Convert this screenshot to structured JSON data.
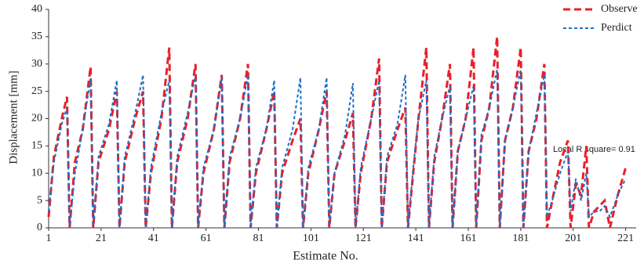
{
  "chart_data": {
    "type": "line",
    "x_label": "Estimate No.",
    "y_label": "Displacement [mm]",
    "annotation": "Local R square= 0.91",
    "legend": "top-right",
    "xlim": [
      1,
      225
    ],
    "ylim": [
      0,
      40
    ],
    "xticks": [
      1,
      21,
      41,
      61,
      81,
      101,
      121,
      141,
      161,
      181,
      201,
      221
    ],
    "yticks": [
      0,
      5,
      10,
      15,
      20,
      25,
      30,
      35,
      40
    ],
    "x": [
      1,
      3,
      6,
      8,
      9,
      11,
      14,
      17,
      18,
      20,
      24,
      27,
      28,
      30,
      34,
      37,
      38,
      40,
      44,
      47,
      48,
      50,
      54,
      57,
      58,
      60,
      64,
      67,
      68,
      70,
      74,
      77,
      78,
      80,
      84,
      87,
      88,
      90,
      94,
      97,
      98,
      100,
      104,
      107,
      108,
      110,
      114,
      117,
      118,
      120,
      124,
      127,
      128,
      130,
      134,
      137,
      138,
      140,
      142,
      145,
      146,
      148,
      151,
      154,
      155,
      157,
      160,
      163,
      164,
      166,
      169,
      172,
      173,
      175,
      178,
      181,
      182,
      184,
      187,
      190,
      191,
      193,
      196,
      199,
      200,
      202,
      204,
      206,
      207,
      209,
      211,
      213,
      215,
      218,
      221
    ],
    "series": [
      {
        "name": "Observe",
        "color": "#e8202a",
        "dash": "9,5",
        "width": 3,
        "values": [
          2,
          13,
          20,
          24,
          0,
          12,
          18,
          29.5,
          0,
          12,
          18,
          25,
          0,
          12,
          20,
          25,
          0,
          10,
          20,
          33,
          0,
          12,
          20,
          30,
          0,
          10,
          18,
          28,
          0,
          12,
          20,
          30,
          0,
          10,
          18,
          25,
          0,
          10,
          16,
          20,
          0,
          10,
          18,
          25,
          0,
          10,
          16,
          21,
          0,
          10,
          20,
          31,
          0,
          12,
          18,
          22,
          0,
          10,
          20,
          33,
          0,
          12,
          20,
          30,
          0,
          14,
          20,
          33,
          0,
          16,
          22,
          35,
          0,
          16,
          22,
          33,
          0,
          14,
          20,
          30,
          0,
          5,
          12,
          16,
          0,
          8,
          6,
          15,
          0,
          3,
          4,
          5,
          0,
          6,
          11
        ]
      },
      {
        "name": "Perdict",
        "color": "#1f6fc4",
        "dash": "4,3",
        "width": 2,
        "values": [
          3,
          12,
          19,
          22,
          0,
          10,
          18,
          27.5,
          0,
          13,
          19,
          27,
          0,
          13,
          21,
          28,
          0,
          11,
          21,
          27,
          0,
          13,
          21,
          28,
          0,
          11,
          18,
          27.5,
          0,
          13,
          20,
          28,
          0,
          11,
          18,
          27,
          0,
          11,
          18,
          27.5,
          0,
          11,
          18,
          27.5,
          0,
          10,
          17,
          26.5,
          0,
          11,
          20,
          27,
          0,
          13,
          19,
          28,
          0,
          11,
          20,
          27,
          0,
          13,
          20,
          26,
          0,
          14,
          20,
          26,
          0,
          17,
          22,
          29,
          0,
          16,
          22,
          29,
          0,
          14,
          21,
          28,
          2,
          5,
          10,
          14,
          3,
          9,
          5,
          10,
          2,
          3,
          3,
          4,
          2,
          6,
          9
        ]
      }
    ]
  }
}
